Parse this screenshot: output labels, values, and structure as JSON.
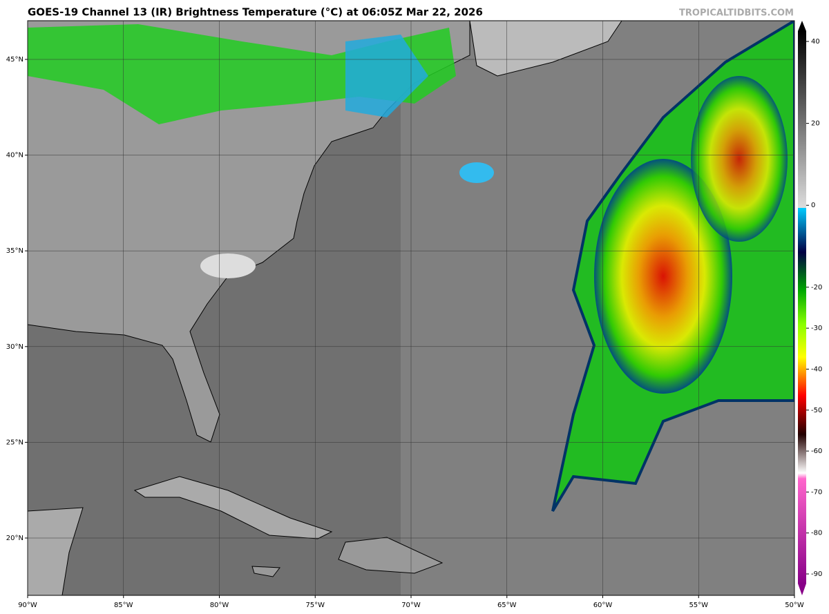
{
  "header": {
    "title": "GOES-19 Channel 13 (IR) Brightness Temperature (°C) at 06:05Z Mar 22, 2026",
    "credit": "TROPICALTIDBITS.COM"
  },
  "map": {
    "lon_labels": [
      "90°W",
      "85°W",
      "80°W",
      "75°W",
      "70°W",
      "65°W",
      "60°W",
      "55°W",
      "50°W"
    ],
    "lat_labels": [
      "45°N",
      "40°N",
      "35°N",
      "30°N",
      "25°N",
      "20°N"
    ]
  },
  "colorbar": {
    "ticks": [
      40,
      20,
      0,
      -20,
      -30,
      -40,
      -50,
      -60,
      -70,
      -80,
      -90
    ]
  }
}
